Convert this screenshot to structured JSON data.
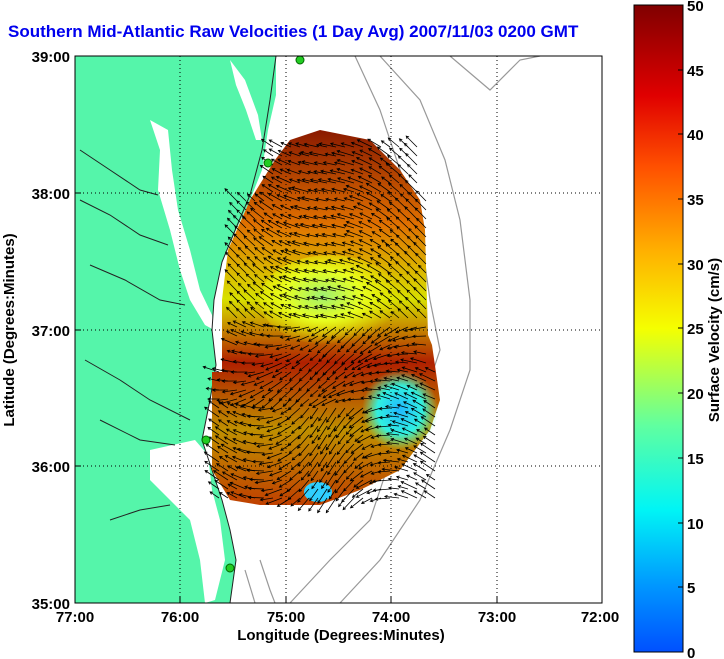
{
  "title": "Southern Mid-Atlantic Raw Velocities (1 Day Avg) 2007/11/03 0200 GMT",
  "chart_data": {
    "type": "heatmap",
    "xlabel": "Longitude (Degrees:Minutes)",
    "ylabel": "Latitude (Degrees:Minutes)",
    "x_ticks": [
      "77:00",
      "76:00",
      "75:00",
      "74:00",
      "73:00",
      "72:00"
    ],
    "y_ticks": [
      "39:00",
      "38:00",
      "37:00",
      "36:00",
      "35:00"
    ],
    "xlim": [
      -77,
      -72
    ],
    "ylim": [
      35,
      39
    ],
    "grid": true,
    "colorbar": {
      "label": "Surface Velocity (cm/s)",
      "ticks": [
        "50",
        "45",
        "40",
        "35",
        "30",
        "25",
        "20",
        "15",
        "10",
        "5",
        "0"
      ],
      "range": [
        0,
        50
      ]
    }
  },
  "colors": {
    "land": "#55f5aa",
    "title": "#0000ee",
    "background": "#ffffff"
  }
}
